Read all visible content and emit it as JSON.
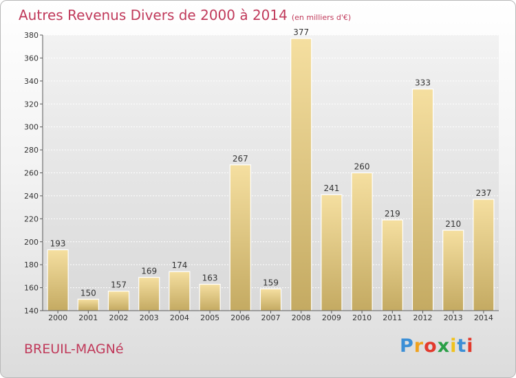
{
  "title": {
    "main": "Autres Revenus Divers de 2000 à 2014",
    "sub": "(en milliers d'€)"
  },
  "commune": "BREUIL-MAGNé",
  "logo": {
    "text": "Proxiti",
    "letters": [
      "P",
      "r",
      "o",
      "x",
      "i",
      "t",
      "i"
    ]
  },
  "colors": {
    "title": "#c0395a",
    "bar_light": "#f5dfa0",
    "bar_dark": "#c4aa62"
  },
  "chart_data": {
    "type": "bar",
    "title": "Autres Revenus Divers de 2000 à 2014",
    "subtitle": "(en milliers d'€)",
    "xlabel": "",
    "ylabel": "",
    "categories": [
      "2000",
      "2001",
      "2002",
      "2003",
      "2004",
      "2005",
      "2006",
      "2007",
      "2008",
      "2009",
      "2010",
      "2011",
      "2012",
      "2013",
      "2014"
    ],
    "values": [
      193,
      150,
      157,
      169,
      174,
      163,
      267,
      159,
      377,
      241,
      260,
      219,
      333,
      210,
      237
    ],
    "ylim": [
      140,
      380
    ],
    "yticks": [
      140,
      160,
      180,
      200,
      220,
      240,
      260,
      280,
      300,
      320,
      340,
      360,
      380
    ],
    "grid": true,
    "legend": "none"
  }
}
